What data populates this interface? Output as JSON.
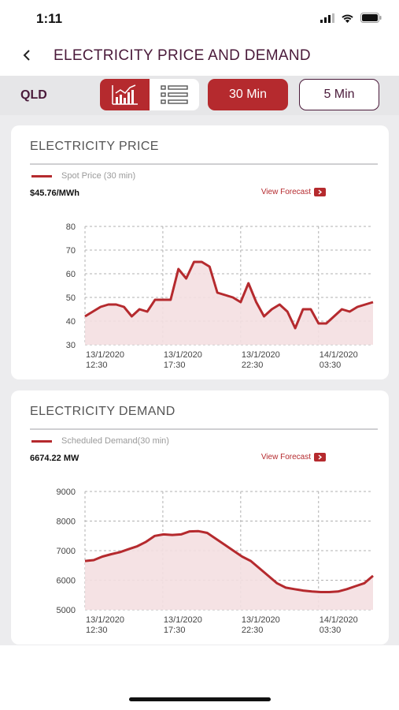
{
  "status": {
    "time": "1:11",
    "signal_icon": "cellular-signal-icon",
    "wifi_icon": "wifi-icon",
    "battery_icon": "battery-icon"
  },
  "nav": {
    "back_icon": "chevron-left-icon",
    "title": "ELECTRICITY PRICE AND DEMAND"
  },
  "toolbar": {
    "region": "QLD",
    "view_modes": [
      {
        "name": "chart",
        "icon": "bar-chart-icon",
        "active": true
      },
      {
        "name": "list",
        "icon": "list-icon",
        "active": false
      }
    ],
    "intervals": [
      {
        "label": "30 Min",
        "active": true
      },
      {
        "label": "5 Min",
        "active": false
      }
    ]
  },
  "colors": {
    "accent": "#b52a2e",
    "title": "#4a1a3a",
    "area_fill": "#f4dfe1"
  },
  "price_card": {
    "title": "ELECTRICITY PRICE",
    "legend": "Spot Price (30 min)",
    "current_value": "$45.76/MWh",
    "view_forecast": "View Forecast",
    "forecast_icon": "chevron-right-icon"
  },
  "demand_card": {
    "title": "ELECTRICITY DEMAND",
    "legend": "Scheduled Demand(30 min)",
    "current_value": "6674.22 MW",
    "view_forecast": "View Forecast",
    "forecast_icon": "chevron-right-icon"
  },
  "chart_data": [
    {
      "type": "area",
      "series": [
        {
          "name": "Spot Price (30 min)",
          "values": [
            42,
            44,
            46,
            47,
            47,
            46,
            42,
            45,
            44,
            49,
            49,
            49,
            62,
            58,
            65,
            65,
            63,
            52,
            51,
            50,
            48,
            56,
            48,
            42,
            45,
            47,
            44,
            37,
            45,
            45,
            39,
            39,
            42,
            45,
            44,
            46,
            47,
            48
          ]
        }
      ],
      "ylim": [
        30,
        80
      ],
      "yticks": [
        80,
        70,
        60,
        50,
        40,
        30
      ],
      "xticks": [
        {
          "line1": "13/1/2020",
          "line2": "12:30"
        },
        {
          "line1": "13/1/2020",
          "line2": "17:30"
        },
        {
          "line1": "13/1/2020",
          "line2": "22:30"
        },
        {
          "line1": "14/1/2020",
          "line2": "03:30"
        }
      ],
      "x_range_hours": 18.5,
      "grid": true
    },
    {
      "type": "area",
      "series": [
        {
          "name": "Scheduled Demand(30 min)",
          "values": [
            6650,
            6680,
            6800,
            6880,
            6950,
            7050,
            7150,
            7300,
            7500,
            7550,
            7530,
            7550,
            7650,
            7660,
            7600,
            7400,
            7200,
            7000,
            6800,
            6650,
            6400,
            6150,
            5900,
            5750,
            5700,
            5650,
            5620,
            5600,
            5600,
            5620,
            5700,
            5800,
            5900,
            6150
          ]
        }
      ],
      "ylim": [
        5000,
        9000
      ],
      "yticks": [
        9000,
        8000,
        7000,
        6000,
        5000
      ],
      "xticks": [
        {
          "line1": "13/1/2020",
          "line2": "12:30"
        },
        {
          "line1": "13/1/2020",
          "line2": "17:30"
        },
        {
          "line1": "13/1/2020",
          "line2": "22:30"
        },
        {
          "line1": "14/1/2020",
          "line2": "03:30"
        }
      ],
      "x_range_hours": 18.5,
      "grid": true
    }
  ]
}
